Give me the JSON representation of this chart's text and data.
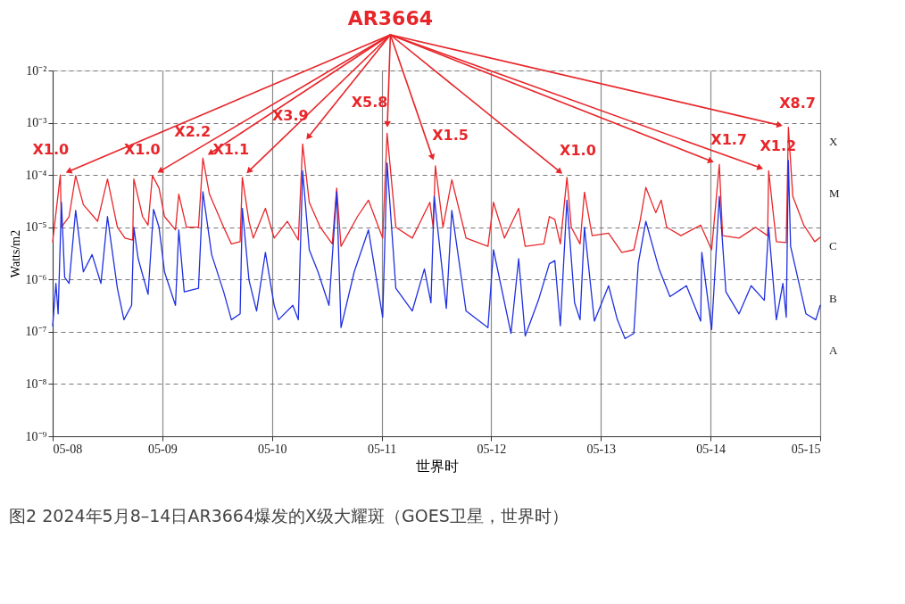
{
  "chart_data": {
    "type": "line",
    "title": "图2  2024年5月8–14日AR3664爆发的X级大耀斑（GOES卫星，世界时）",
    "xlabel": "世界时",
    "ylabel": "Watts/m2",
    "xlim": [
      "2024-05-08",
      "2024-05-15"
    ],
    "xticks": [
      {
        "value": "2024-05-08",
        "label": "05-08"
      },
      {
        "value": "2024-05-09",
        "label": "05-09"
      },
      {
        "value": "2024-05-10",
        "label": "05-10"
      },
      {
        "value": "2024-05-11",
        "label": "05-11"
      },
      {
        "value": "2024-05-12",
        "label": "05-12"
      },
      {
        "value": "2024-05-13",
        "label": "05-13"
      },
      {
        "value": "2024-05-14",
        "label": "05-14"
      },
      {
        "value": "2024-05-15",
        "label": "05-15"
      }
    ],
    "ylim": [
      1e-09,
      0.01
    ],
    "yticks": [
      {
        "value": 1e-09,
        "label": "10⁻⁹"
      },
      {
        "value": 1e-08,
        "label": "10⁻⁸"
      },
      {
        "value": 1e-07,
        "label": "10⁻⁷"
      },
      {
        "value": 1e-06,
        "label": "10⁻⁶"
      },
      {
        "value": 1e-05,
        "label": "10⁻⁵"
      },
      {
        "value": 0.0001,
        "label": "10⁻⁴"
      },
      {
        "value": 0.001,
        "label": "10⁻³"
      },
      {
        "value": 0.01,
        "label": "10⁻²"
      }
    ],
    "log": "y",
    "grid": true,
    "series": [
      {
        "color": "#e8262a",
        "x": [
          "2024-05-08T00:00",
          "2024-05-08T01:41",
          "2024-05-08T01:55",
          "2024-05-08T03:36",
          "2024-05-08T05:02",
          "2024-05-08T06:43",
          "2024-05-08T09:50",
          "2024-05-08T12:00",
          "2024-05-08T14:10",
          "2024-05-08T15:50",
          "2024-05-08T17:31",
          "2024-05-08T17:46",
          "2024-05-08T19:41",
          "2024-05-08T20:53",
          "2024-05-08T21:50",
          "2024-05-08T23:17",
          "2024-05-09T00:29",
          "2024-05-09T02:53",
          "2024-05-09T03:36",
          "2024-05-09T05:17",
          "2024-05-09T07:55",
          "2024-05-09T08:53",
          "2024-05-09T10:19",
          "2024-05-09T13:26",
          "2024-05-09T15:07",
          "2024-05-09T17:02",
          "2024-05-09T17:31",
          "2024-05-09T18:58",
          "2024-05-09T19:55",
          "2024-05-09T22:34",
          "2024-05-10T00:29",
          "2024-05-10T03:22",
          "2024-05-10T05:46",
          "2024-05-10T06:43",
          "2024-05-10T08:10",
          "2024-05-10T10:34",
          "2024-05-10T13:12",
          "2024-05-10T14:10",
          "2024-05-10T15:07",
          "2024-05-10T18:43",
          "2024-05-10T21:07",
          "2024-05-11T00:14",
          "2024-05-11T01:12",
          "2024-05-11T03:07",
          "2024-05-11T06:43",
          "2024-05-11T10:34",
          "2024-05-11T11:17",
          "2024-05-11T11:46",
          "2024-05-11T13:26",
          "2024-05-11T15:22",
          "2024-05-11T18:29",
          "2024-05-11T23:17",
          "2024-05-12T00:29",
          "2024-05-12T02:53",
          "2024-05-12T06:00",
          "2024-05-12T07:26",
          "2024-05-12T11:31",
          "2024-05-12T12:43",
          "2024-05-12T13:55",
          "2024-05-12T15:07",
          "2024-05-12T16:34",
          "2024-05-12T17:31",
          "2024-05-12T19:26",
          "2024-05-12T20:24",
          "2024-05-12T22:05",
          "2024-05-13T01:41",
          "2024-05-13T04:34",
          "2024-05-13T07:12",
          "2024-05-13T08:38",
          "2024-05-13T09:50",
          "2024-05-13T12:00",
          "2024-05-13T13:12",
          "2024-05-13T14:24",
          "2024-05-13T17:31",
          "2024-05-13T21:50",
          "2024-05-14T00:14",
          "2024-05-14T01:55",
          "2024-05-14T02:38",
          "2024-05-14T06:14",
          "2024-05-14T09:50",
          "2024-05-14T12:29",
          "2024-05-14T12:43",
          "2024-05-14T14:24",
          "2024-05-14T16:34",
          "2024-05-14T17:02",
          "2024-05-14T18:00",
          "2024-05-14T20:24",
          "2024-05-14T22:48",
          "2024-05-15T00:00"
        ],
        "values": [
          5.3e-06,
          0.0001,
          1e-05,
          1.6e-05,
          9.7e-05,
          2.7e-05,
          1.3e-05,
          8.4e-05,
          1e-05,
          6.2e-06,
          5.7e-06,
          8.4e-05,
          1.6e-05,
          1.1e-05,
          9.7e-05,
          5.6e-05,
          1.6e-05,
          8.9e-06,
          4.3e-05,
          1e-05,
          1e-05,
          0.00021,
          4.3e-05,
          1e-05,
          4.8e-06,
          5.3e-06,
          9e-05,
          1.3e-05,
          6.2e-06,
          2.3e-05,
          6.2e-06,
          1.3e-05,
          5.7e-06,
          0.00039,
          3e-05,
          1e-05,
          4.8e-06,
          5.6e-05,
          4.3e-06,
          1.6e-05,
          3.3e-05,
          6.2e-06,
          0.00063,
          1e-05,
          6.2e-06,
          3e-05,
          1e-05,
          0.00015,
          1e-05,
          8.1e-05,
          6.2e-06,
          4.3e-06,
          3e-05,
          6.2e-06,
          2.3e-05,
          4.3e-06,
          4.8e-06,
          1.6e-05,
          1.4e-05,
          4.8e-06,
          9e-05,
          1e-05,
          4.8e-06,
          4.7e-05,
          6.9e-06,
          7.7e-06,
          3.3e-06,
          3.7e-06,
          1.4e-05,
          5.8e-05,
          1.9e-05,
          3.3e-05,
          1e-05,
          6.9e-06,
          1.1e-05,
          3.7e-06,
          0.00016,
          6.9e-06,
          6.2e-06,
          1e-05,
          6.9e-06,
          0.00012,
          5.3e-06,
          5.1e-06,
          0.00082,
          3.9e-05,
          1.1e-05,
          5.3e-06,
          6.4e-06
        ]
      },
      {
        "color": "#1f2fe0",
        "x": [
          "2024-05-08T00:00",
          "2024-05-08T00:43",
          "2024-05-08T01:12",
          "2024-05-08T01:55",
          "2024-05-08T02:38",
          "2024-05-08T03:36",
          "2024-05-08T05:02",
          "2024-05-08T06:43",
          "2024-05-08T08:38",
          "2024-05-08T10:34",
          "2024-05-08T12:00",
          "2024-05-08T14:10",
          "2024-05-08T15:36",
          "2024-05-08T17:17",
          "2024-05-08T17:46",
          "2024-05-08T18:43",
          "2024-05-08T20:53",
          "2024-05-08T22:05",
          "2024-05-08T23:17",
          "2024-05-09T00:29",
          "2024-05-09T02:53",
          "2024-05-09T03:36",
          "2024-05-09T04:48",
          "2024-05-09T07:55",
          "2024-05-09T08:53",
          "2024-05-09T10:48",
          "2024-05-09T13:26",
          "2024-05-09T15:07",
          "2024-05-09T17:02",
          "2024-05-09T17:31",
          "2024-05-09T18:58",
          "2024-05-09T20:38",
          "2024-05-09T22:34",
          "2024-05-10T00:29",
          "2024-05-10T01:26",
          "2024-05-10T04:34",
          "2024-05-10T05:46",
          "2024-05-10T06:43",
          "2024-05-10T08:10",
          "2024-05-10T10:05",
          "2024-05-10T12:29",
          "2024-05-10T14:10",
          "2024-05-10T15:07",
          "2024-05-10T18:00",
          "2024-05-10T21:07",
          "2024-05-11T00:14",
          "2024-05-11T01:12",
          "2024-05-11T03:07",
          "2024-05-11T06:43",
          "2024-05-11T09:22",
          "2024-05-11T10:48",
          "2024-05-11T11:31",
          "2024-05-11T14:10",
          "2024-05-11T15:22",
          "2024-05-11T18:29",
          "2024-05-11T23:17",
          "2024-05-12T00:29",
          "2024-05-12T04:19",
          "2024-05-12T06:00",
          "2024-05-12T07:26",
          "2024-05-12T10:19",
          "2024-05-12T12:43",
          "2024-05-12T13:55",
          "2024-05-12T15:07",
          "2024-05-12T16:34",
          "2024-05-12T18:14",
          "2024-05-12T19:26",
          "2024-05-12T20:24",
          "2024-05-12T22:34",
          "2024-05-13T01:41",
          "2024-05-13T03:36",
          "2024-05-13T05:17",
          "2024-05-13T07:12",
          "2024-05-13T08:10",
          "2024-05-13T09:50",
          "2024-05-13T12:43",
          "2024-05-13T15:07",
          "2024-05-13T18:43",
          "2024-05-13T21:50",
          "2024-05-13T22:05",
          "2024-05-14T00:14",
          "2024-05-14T01:55",
          "2024-05-14T03:22",
          "2024-05-14T06:14",
          "2024-05-14T08:53",
          "2024-05-14T11:46",
          "2024-05-14T12:43",
          "2024-05-14T14:24",
          "2024-05-14T15:50",
          "2024-05-14T16:34",
          "2024-05-14T17:02",
          "2024-05-14T17:31",
          "2024-05-14T20:53",
          "2024-05-14T23:02",
          "2024-05-15T00:00"
        ],
        "values": [
          1.3e-07,
          8.4e-07,
          2.2e-07,
          3e-05,
          1.1e-06,
          8.4e-07,
          2.1e-05,
          1.4e-06,
          3e-06,
          8.4e-07,
          1.6e-05,
          6.8e-07,
          1.7e-07,
          3.2e-07,
          1e-05,
          2.5e-06,
          5.2e-07,
          2.2e-05,
          1e-05,
          1.4e-06,
          3.2e-07,
          8.9e-06,
          5.8e-07,
          6.8e-07,
          4.8e-05,
          3e-06,
          5.8e-07,
          1.7e-07,
          2.2e-07,
          2.3e-05,
          9.8e-07,
          2.5e-07,
          3.3e-06,
          3.2e-07,
          1.7e-07,
          3.2e-07,
          1.7e-07,
          0.00012,
          3.7e-06,
          1.4e-06,
          3.2e-07,
          4.8e-05,
          1.2e-07,
          1.4e-06,
          8.9e-06,
          1.9e-07,
          0.00017,
          6.8e-07,
          2.5e-07,
          1.6e-06,
          3.6e-07,
          3.9e-05,
          2.8e-07,
          2.1e-05,
          2.5e-07,
          1.2e-07,
          3.7e-06,
          9.3e-08,
          2.5e-06,
          8.3e-08,
          4e-07,
          2e-06,
          2.3e-06,
          1.3e-07,
          3.3e-05,
          3.6e-07,
          1.7e-07,
          1e-05,
          1.6e-07,
          7.6e-07,
          1.7e-07,
          7.4e-08,
          9.3e-08,
          2e-06,
          1.3e-05,
          1.6e-06,
          4.7e-07,
          7.6e-07,
          1.6e-07,
          3.3e-06,
          1.1e-07,
          3.9e-05,
          5.8e-07,
          2.2e-07,
          7.6e-07,
          4e-07,
          1e-05,
          1.7e-07,
          8.4e-07,
          1.9e-07,
          0.00019,
          4.3e-06,
          2.2e-07,
          1.7e-07,
          3.2e-07
        ]
      }
    ],
    "annotations": [
      "AR3664",
      "A",
      "B",
      "C",
      "M",
      "X",
      {
        "text": "X1.0",
        "x": "2024-05-08T01:41",
        "y": 0.0001
      },
      {
        "text": "X1.0",
        "x": "2024-05-08T21:50",
        "y": 9.7e-05
      },
      {
        "text": "X2.2",
        "x": "2024-05-09T08:53",
        "y": 0.00021
      },
      {
        "text": "X1.1",
        "x": "2024-05-09T17:31",
        "y": 9e-05
      },
      {
        "text": "X3.9",
        "x": "2024-05-10T06:43",
        "y": 0.00039
      },
      {
        "text": "X5.8",
        "x": "2024-05-11T01:12",
        "y": 0.00063
      },
      {
        "text": "X1.5",
        "x": "2024-05-11T11:46",
        "y": 0.00015
      },
      {
        "text": "X1.0",
        "x": "2024-05-12T16:34",
        "y": 9e-05
      },
      {
        "text": "X1.7",
        "x": "2024-05-14T01:55",
        "y": 0.00016
      },
      {
        "text": "X1.2",
        "x": "2024-05-14T12:43",
        "y": 0.00012
      },
      {
        "text": "X8.7",
        "x": "2024-05-14T17:02",
        "y": 0.00082
      }
    ]
  }
}
